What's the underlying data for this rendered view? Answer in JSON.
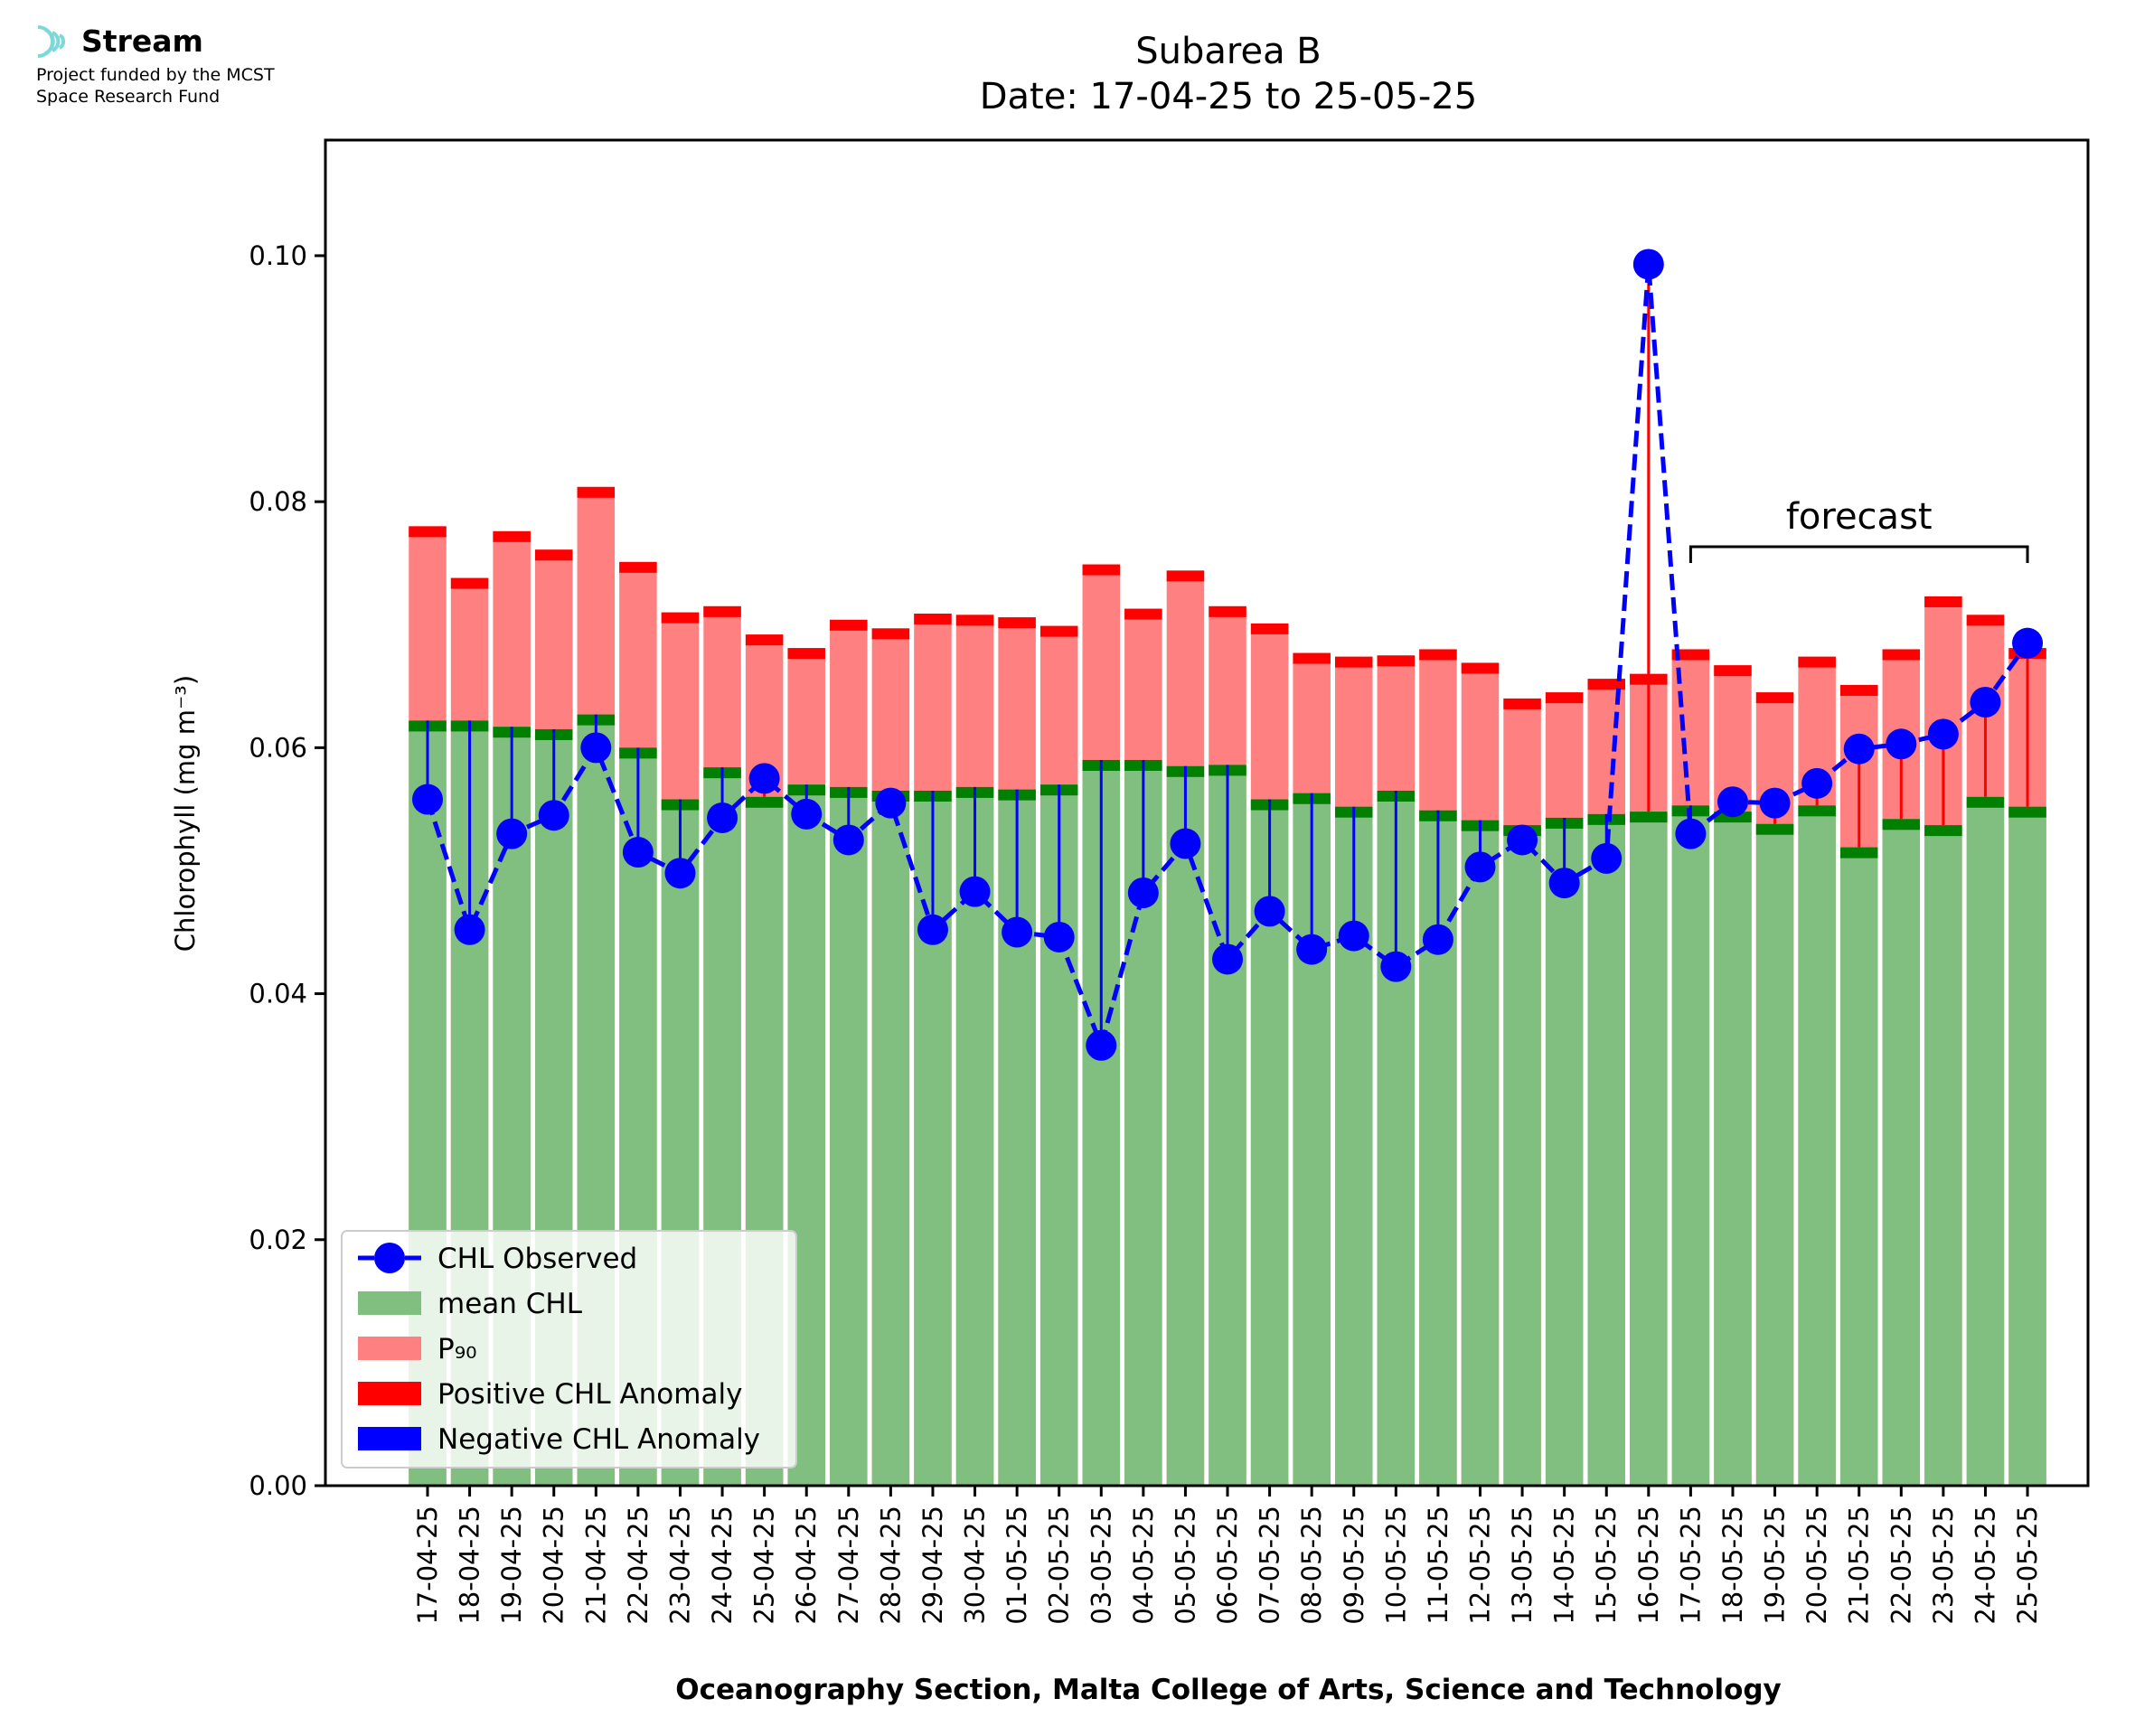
{
  "logo": {
    "brand": "Stream",
    "line1": "Project funded by the MCST",
    "line2": "Space Research Fund"
  },
  "colors": {
    "mean": "#80bf80",
    "mean_edge": "#007f00",
    "p90": "#ff8080",
    "p90_edge": "#ff0000",
    "observed": "#0000ff",
    "positive_anomaly": "#ff0000",
    "negative_anomaly": "#0000ff"
  },
  "chart_data": {
    "type": "bar",
    "title": "Subarea B",
    "subtitle": "Date: 17-04-25 to 25-05-25",
    "xlabel": "Oceanography Section, Malta College of Arts, Science and Technology",
    "ylabel": "Chlorophyll (mg m⁻³)",
    "ylim": [
      0,
      0.1094
    ],
    "yticks": [
      "0.00",
      "0.02",
      "0.04",
      "0.06",
      "0.08",
      "0.10"
    ],
    "ytick_values": [
      0,
      0.02,
      0.04,
      0.06,
      0.08,
      0.1
    ],
    "categories": [
      "17-04-25",
      "18-04-25",
      "19-04-25",
      "20-04-25",
      "21-04-25",
      "22-04-25",
      "23-04-25",
      "24-04-25",
      "25-04-25",
      "26-04-25",
      "27-04-25",
      "28-04-25",
      "29-04-25",
      "30-04-25",
      "01-05-25",
      "02-05-25",
      "03-05-25",
      "04-05-25",
      "05-05-25",
      "06-05-25",
      "07-05-25",
      "08-05-25",
      "09-05-25",
      "10-05-25",
      "11-05-25",
      "12-05-25",
      "13-05-25",
      "14-05-25",
      "15-05-25",
      "16-05-25",
      "17-05-25",
      "18-05-25",
      "19-05-25",
      "20-05-25",
      "21-05-25",
      "22-05-25",
      "23-05-25",
      "24-05-25",
      "25-05-25"
    ],
    "series": [
      {
        "name": "CHL Observed",
        "values": [
          0.0558,
          0.0452,
          0.053,
          0.0545,
          0.06,
          0.0515,
          0.0498,
          0.0543,
          0.0575,
          0.0546,
          0.0525,
          0.0555,
          0.0452,
          0.0483,
          0.045,
          0.0446,
          0.0358,
          0.0482,
          0.0522,
          0.0428,
          0.0467,
          0.0436,
          0.0447,
          0.0422,
          0.0444,
          0.0503,
          0.0525,
          0.049,
          0.051,
          0.0993,
          0.053,
          0.0556,
          0.0555,
          0.0571,
          0.0599,
          0.0603,
          0.0611,
          0.0637,
          0.0685
        ]
      },
      {
        "name": "mean CHL",
        "values": [
          0.0622,
          0.0622,
          0.0617,
          0.0615,
          0.0627,
          0.06,
          0.0558,
          0.0584,
          0.056,
          0.057,
          0.0568,
          0.0565,
          0.0565,
          0.0568,
          0.0566,
          0.057,
          0.059,
          0.059,
          0.0585,
          0.0586,
          0.0558,
          0.0563,
          0.0552,
          0.0565,
          0.0549,
          0.0541,
          0.0537,
          0.0543,
          0.0546,
          0.0548,
          0.0553,
          0.0548,
          0.0538,
          0.0553,
          0.0519,
          0.0542,
          0.0537,
          0.056,
          0.0552
        ]
      },
      {
        "name": "P₉₀",
        "values": [
          0.078,
          0.0738,
          0.0776,
          0.0761,
          0.0812,
          0.0751,
          0.071,
          0.0715,
          0.0692,
          0.0681,
          0.0704,
          0.0697,
          0.0709,
          0.0708,
          0.0706,
          0.0699,
          0.0749,
          0.0713,
          0.0744,
          0.0715,
          0.0701,
          0.0677,
          0.0674,
          0.0675,
          0.068,
          0.0669,
          0.064,
          0.0645,
          0.0656,
          0.066,
          0.068,
          0.0667,
          0.0645,
          0.0674,
          0.0651,
          0.068,
          0.0723,
          0.0708,
          0.0681
        ]
      }
    ],
    "legend": [
      "CHL Observed",
      "mean CHL",
      "P₉₀",
      "Positive CHL Anomaly",
      "Negative CHL Anomaly"
    ],
    "legend_position": "lower left",
    "annotation": "forecast",
    "forecast_range": [
      "17-05-25",
      "25-05-25"
    ]
  }
}
